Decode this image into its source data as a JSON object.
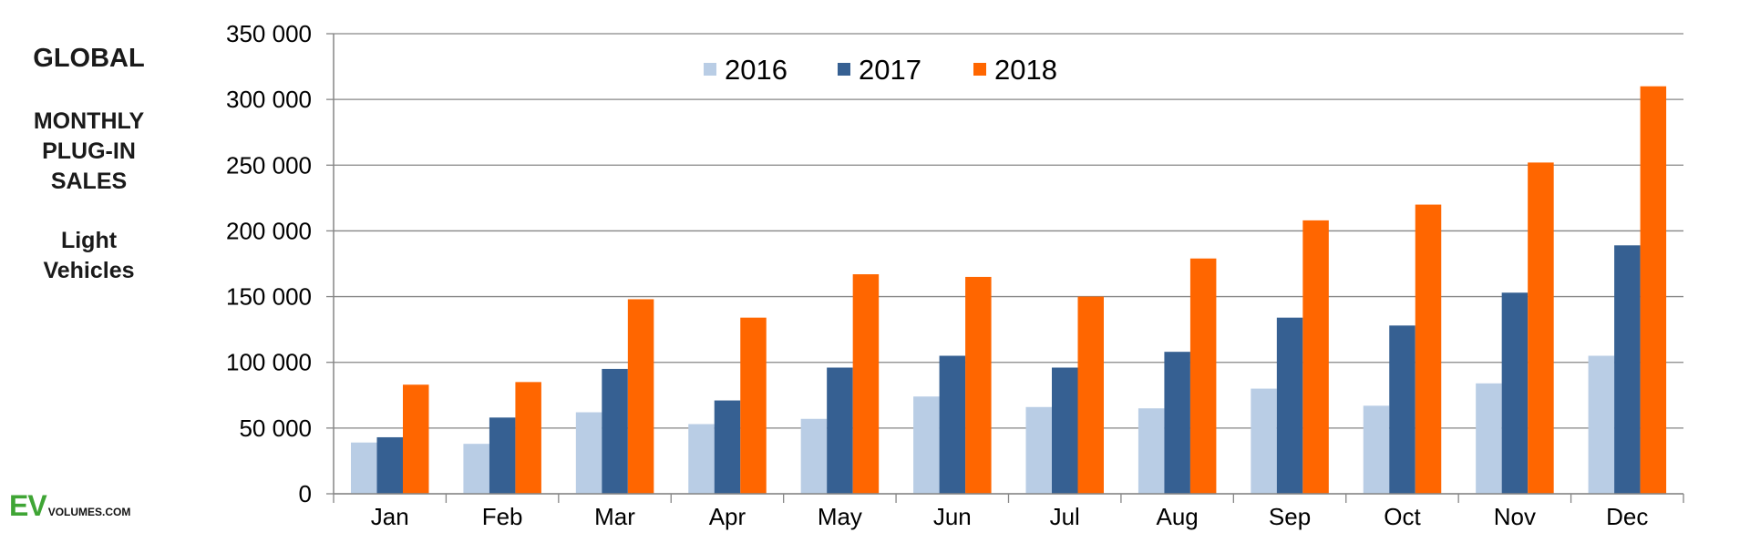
{
  "side_title": {
    "global": "GLOBAL",
    "line1": "MONTHLY",
    "line2": "PLUG-IN",
    "line3": "SALES",
    "line4": "Light",
    "line5": "Vehicles"
  },
  "logo": {
    "ev": "EV",
    "volumes": "VOLUMES.COM"
  },
  "chart_data": {
    "type": "bar",
    "categories": [
      "Jan",
      "Feb",
      "Mar",
      "Apr",
      "May",
      "Jun",
      "Jul",
      "Aug",
      "Sep",
      "Oct",
      "Nov",
      "Dec"
    ],
    "series": [
      {
        "name": "2016",
        "color": "#b9cde5",
        "values": [
          39000,
          38000,
          62000,
          53000,
          57000,
          74000,
          66000,
          65000,
          80000,
          67000,
          84000,
          105000
        ]
      },
      {
        "name": "2017",
        "color": "#366092",
        "values": [
          43000,
          58000,
          95000,
          71000,
          96000,
          105000,
          96000,
          108000,
          134000,
          128000,
          153000,
          189000
        ]
      },
      {
        "name": "2018",
        "color": "#ff6600",
        "values": [
          83000,
          85000,
          148000,
          134000,
          167000,
          165000,
          150000,
          179000,
          208000,
          220000,
          252000,
          310000
        ]
      }
    ],
    "ylim": [
      0,
      350000
    ],
    "yticks": [
      "0",
      "50 000",
      "100 000",
      "150 000",
      "200 000",
      "250 000",
      "300 000",
      "350 000"
    ],
    "ytick_values": [
      0,
      50000,
      100000,
      150000,
      200000,
      250000,
      300000,
      350000
    ],
    "grid": true,
    "legend_position": "top-center"
  }
}
